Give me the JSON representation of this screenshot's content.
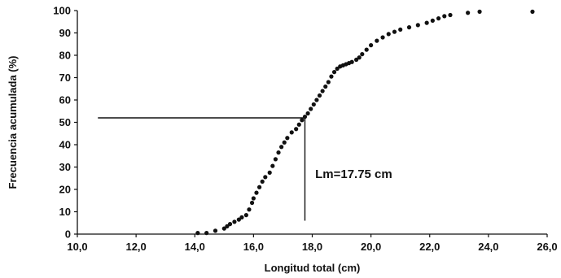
{
  "chart_data": {
    "type": "scatter",
    "title": "",
    "xlabel": "Longitud total (cm)",
    "ylabel": "Frecuencia acumulada (%)",
    "xlim": [
      10,
      26
    ],
    "ylim": [
      0,
      100
    ],
    "x_ticks": [
      10,
      12,
      14,
      16,
      18,
      20,
      22,
      24,
      26
    ],
    "x_tick_labels": [
      "10,0",
      "12,0",
      "14,0",
      "16,0",
      "18,0",
      "20,0",
      "22,0",
      "24,0",
      "26,0"
    ],
    "y_ticks": [
      0,
      10,
      20,
      30,
      40,
      50,
      60,
      70,
      80,
      90,
      100
    ],
    "y_tick_labels": [
      "0",
      "10",
      "20",
      "30",
      "40",
      "50",
      "60",
      "70",
      "80",
      "90",
      "100"
    ],
    "grid": false,
    "marker_color": "#111111",
    "series": [
      {
        "x": [
          14.1,
          14.4,
          14.7,
          15.0,
          15.1,
          15.2,
          15.35,
          15.5,
          15.6,
          15.75,
          15.85,
          15.95,
          16.0,
          16.1,
          16.2,
          16.3,
          16.4,
          16.55,
          16.65,
          16.75,
          16.85,
          16.95,
          17.05,
          17.15,
          17.3,
          17.45,
          17.55,
          17.65,
          17.75,
          17.85,
          17.95,
          18.05,
          18.15,
          18.25,
          18.35,
          18.45,
          18.55,
          18.65,
          18.75,
          18.85,
          18.95,
          19.05,
          19.15,
          19.25,
          19.35,
          19.5,
          19.6,
          19.7,
          19.85,
          20.0,
          20.2,
          20.4,
          20.6,
          20.8,
          21.0,
          21.3,
          21.6,
          21.9,
          22.1,
          22.3,
          22.5,
          22.7,
          23.3,
          23.7,
          25.5
        ],
        "y": [
          0.5,
          0.5,
          1.5,
          2.5,
          3.5,
          4.5,
          5.5,
          6.5,
          7.5,
          8.5,
          11,
          14,
          16,
          18.5,
          21,
          23.5,
          25.5,
          27.5,
          30.5,
          33.5,
          36.5,
          39,
          41,
          43,
          45.5,
          47,
          49,
          51,
          52.5,
          54,
          56,
          58,
          60,
          62,
          64,
          66,
          68,
          70.5,
          72.5,
          74,
          75,
          75.5,
          76,
          76.5,
          77,
          78,
          79,
          80.5,
          82.5,
          84.5,
          86.5,
          88,
          89.5,
          90.5,
          91.5,
          92.5,
          93.5,
          94.5,
          95.5,
          96.5,
          97.5,
          98,
          99,
          99.5,
          99.5
        ]
      }
    ],
    "reference_lines": [
      {
        "orientation": "horizontal",
        "y": 52,
        "x_from": 10.7,
        "x_to": 17.75
      },
      {
        "orientation": "vertical",
        "x": 17.75,
        "y_from": 6,
        "y_to": 52
      }
    ],
    "annotation": {
      "text": "Lm=17.75 cm",
      "x": 18.1,
      "y": 27
    }
  }
}
